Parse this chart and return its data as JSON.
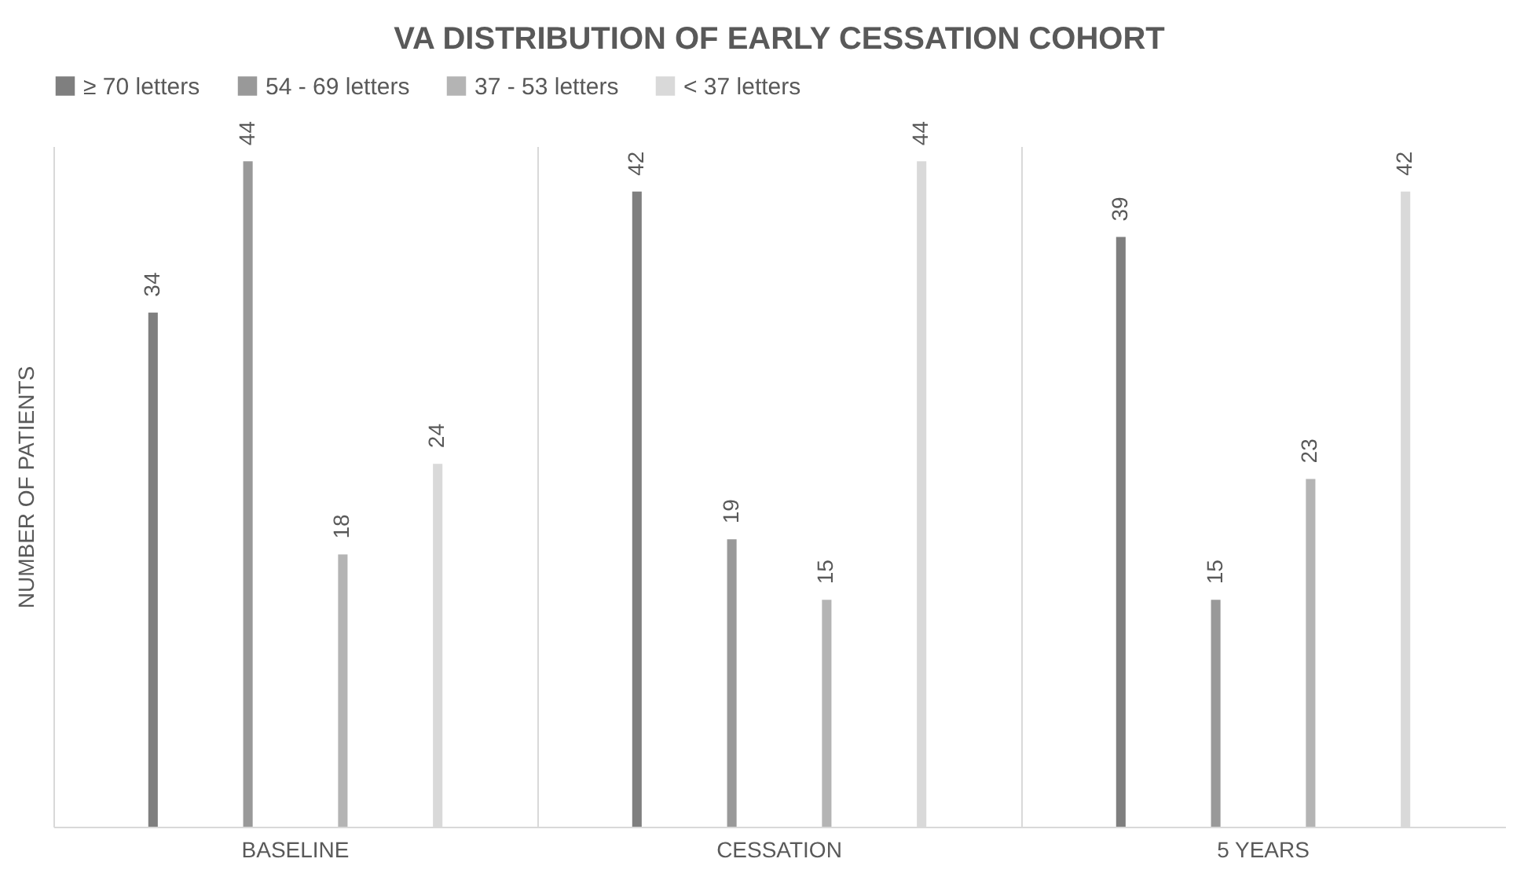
{
  "chart_data": {
    "type": "bar",
    "title": "VA DISTRIBUTION OF EARLY CESSATION COHORT",
    "ylabel": "NUMBER OF PATIENTS",
    "categories": [
      "BASELINE",
      "CESSATION",
      "5 YEARS"
    ],
    "series": [
      {
        "name": "≥ 70 letters",
        "color": "#7f7f7f",
        "values": [
          34,
          42,
          39
        ]
      },
      {
        "name": "54 - 69 letters",
        "color": "#999999",
        "values": [
          44,
          19,
          15
        ]
      },
      {
        "name": "37 - 53 letters",
        "color": "#b4b4b4",
        "values": [
          18,
          15,
          23
        ]
      },
      {
        "name": "< 37 letters",
        "color": "#d9d9d9",
        "values": [
          24,
          44,
          42
        ]
      }
    ],
    "data_labels": true,
    "legend": "top",
    "grid": "x"
  }
}
